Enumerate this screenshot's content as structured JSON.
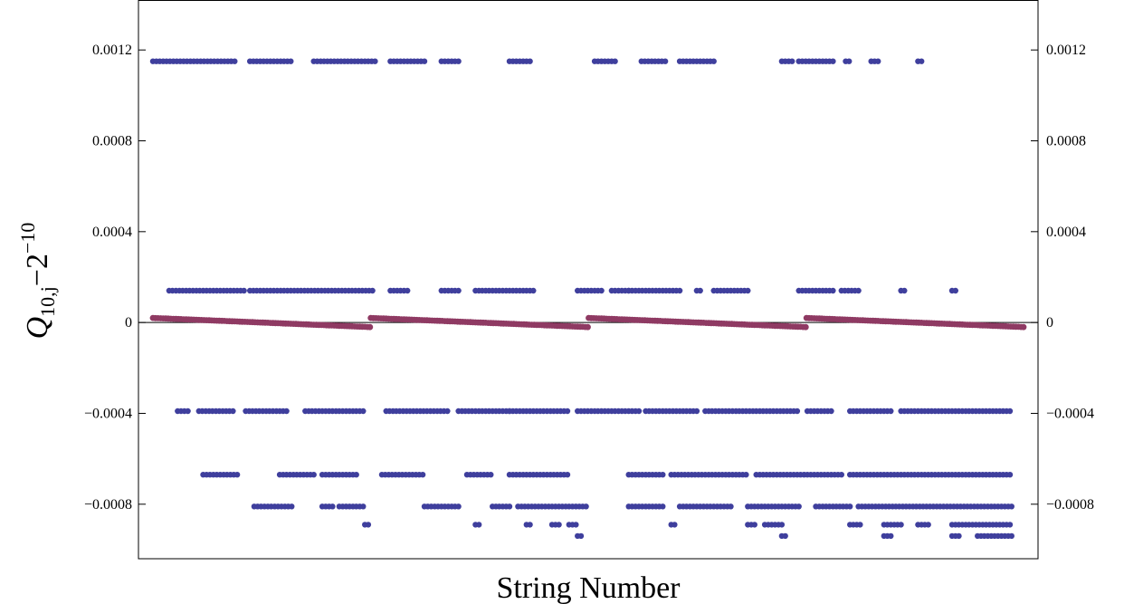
{
  "chart_data": {
    "type": "scatter",
    "title": "",
    "xlabel": "String Number",
    "ylabel": {
      "base": "Q",
      "subscript": "10,j",
      "operator": "−",
      "power_base": "2",
      "superscript": "−10"
    },
    "ylim": [
      -0.00104,
      0.00142
    ],
    "yticks": [
      {
        "value": 0.0012,
        "label": "0.0012"
      },
      {
        "value": 0.0008,
        "label": "0.0008"
      },
      {
        "value": 0.0004,
        "label": "0.0004"
      },
      {
        "value": 0,
        "label": "0"
      },
      {
        "value": -0.0004,
        "label": "−0.0004"
      },
      {
        "value": -0.0008,
        "label": "−0.0008"
      }
    ],
    "x_tick_labels": "none",
    "grid": false,
    "zero_line": true,
    "right_axis_mirrors_left": true,
    "x_range_string_numbers": [
      1,
      1024
    ],
    "series": [
      {
        "color": "#3f3f9d",
        "marker": "dot",
        "levels": [
          {
            "y": 0.00115,
            "x_ranges": [
              [
                1,
                100
              ],
              [
                115,
                165
              ],
              [
                190,
                265
              ],
              [
                280,
                320
              ],
              [
                340,
                360
              ],
              [
                420,
                445
              ],
              [
                520,
                545
              ],
              [
                575,
                605
              ],
              [
                620,
                660
              ],
              [
                740,
                752
              ],
              [
                760,
                800
              ],
              [
                815,
                820
              ],
              [
                845,
                855
              ],
              [
                900,
                905
              ]
            ]
          },
          {
            "y": 0.00014,
            "x_ranges": [
              [
                20,
                110
              ],
              [
                115,
                260
              ],
              [
                280,
                300
              ],
              [
                340,
                360
              ],
              [
                380,
                450
              ],
              [
                500,
                530
              ],
              [
                540,
                560
              ],
              [
                560,
                620
              ],
              [
                640,
                645
              ],
              [
                660,
                700
              ],
              [
                760,
                800
              ],
              [
                810,
                830
              ],
              [
                880,
                885
              ],
              [
                940,
                945
              ]
            ]
          },
          {
            "y": -0.00039,
            "x_ranges": [
              [
                30,
                45
              ],
              [
                55,
                95
              ],
              [
                110,
                160
              ],
              [
                180,
                250
              ],
              [
                275,
                350
              ],
              [
                360,
                420
              ],
              [
                420,
                490
              ],
              [
                500,
                575
              ],
              [
                580,
                640
              ],
              [
                650,
                760
              ],
              [
                770,
                800
              ],
              [
                820,
                870
              ],
              [
                880,
                1010
              ]
            ]
          },
          {
            "y": -0.00067,
            "x_ranges": [
              [
                60,
                100
              ],
              [
                150,
                190
              ],
              [
                200,
                240
              ],
              [
                270,
                320
              ],
              [
                370,
                400
              ],
              [
                420,
                490
              ],
              [
                560,
                600
              ],
              [
                610,
                700
              ],
              [
                710,
                810
              ],
              [
                820,
                1010
              ]
            ]
          },
          {
            "y": -0.00081,
            "x_ranges": [
              [
                120,
                165
              ],
              [
                200,
                215
              ],
              [
                220,
                250
              ],
              [
                320,
                360
              ],
              [
                400,
                420
              ],
              [
                430,
                510
              ],
              [
                560,
                600
              ],
              [
                620,
                680
              ],
              [
                700,
                760
              ],
              [
                780,
                820
              ],
              [
                830,
                1010
              ]
            ]
          },
          {
            "y": -0.00089,
            "x_ranges": [
              [
                250,
                255
              ],
              [
                380,
                385
              ],
              [
                440,
                445
              ],
              [
                470,
                480
              ],
              [
                490,
                500
              ],
              [
                610,
                615
              ],
              [
                700,
                710
              ],
              [
                720,
                740
              ],
              [
                820,
                835
              ],
              [
                860,
                880
              ],
              [
                900,
                915
              ],
              [
                940,
                1010
              ]
            ]
          },
          {
            "y": -0.00094,
            "x_ranges": [
              [
                500,
                505
              ],
              [
                740,
                745
              ],
              [
                860,
                870
              ],
              [
                940,
                950
              ],
              [
                970,
                1010
              ]
            ]
          }
        ]
      },
      {
        "color": "#8f3a63",
        "marker": "dot",
        "segments": [
          {
            "x": [
              1,
              256
            ],
            "y": [
              2e-05,
              -2e-05
            ]
          },
          {
            "x": [
              257,
              512
            ],
            "y": [
              2e-05,
              -2e-05
            ]
          },
          {
            "x": [
              513,
              768
            ],
            "y": [
              2e-05,
              -2e-05
            ]
          },
          {
            "x": [
              769,
              1024
            ],
            "y": [
              2e-05,
              -2e-05
            ]
          }
        ]
      }
    ]
  }
}
